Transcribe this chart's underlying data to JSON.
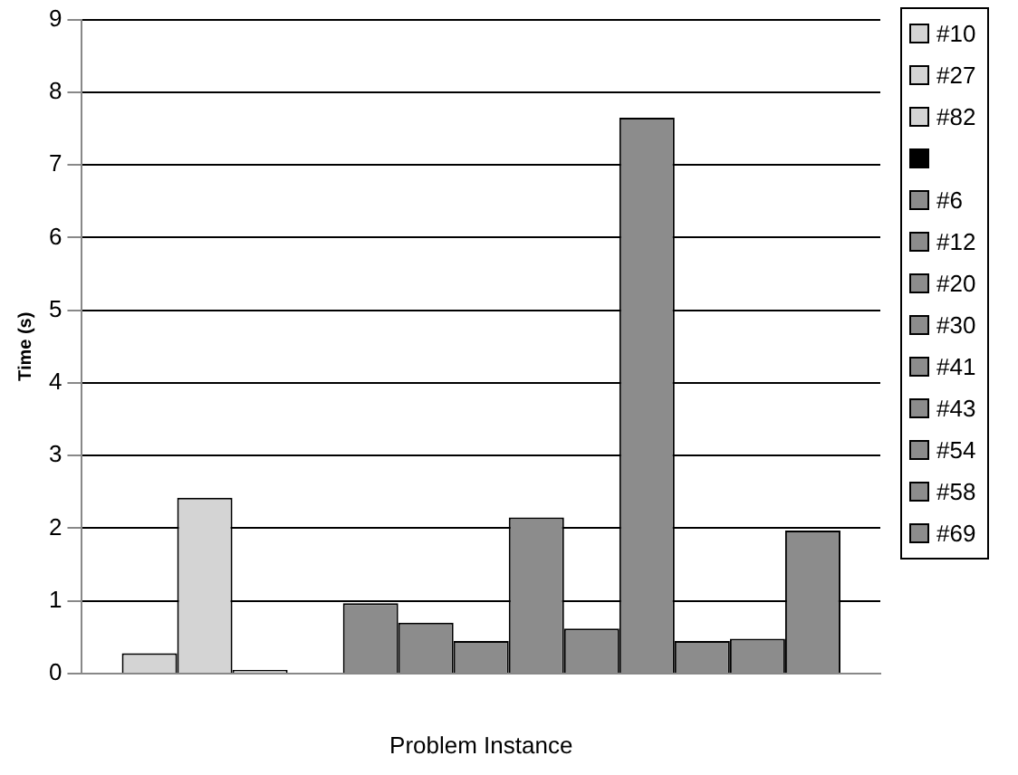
{
  "chart_data": {
    "type": "bar",
    "xlabel": "Problem Instance",
    "ylabel": "Time (s)",
    "categories": [
      null
    ],
    "series": [
      {
        "name": "#10",
        "color": "#d4d4d4",
        "values": [
          0.28
        ]
      },
      {
        "name": "#27",
        "color": "#d4d4d4",
        "values": [
          2.42
        ]
      },
      {
        "name": "#82",
        "color": "#d4d4d4",
        "values": [
          0.05
        ]
      },
      {
        "color": "#000000",
        "values": [
          null
        ]
      },
      {
        "name": "#6",
        "color": "#8c8c8c",
        "values": [
          0.97
        ]
      },
      {
        "name": "#12",
        "color": "#8c8c8c",
        "values": [
          0.7
        ]
      },
      {
        "name": "#20",
        "color": "#8c8c8c",
        "values": [
          0.45
        ]
      },
      {
        "name": "#30",
        "color": "#8c8c8c",
        "values": [
          2.15
        ]
      },
      {
        "name": "#41",
        "color": "#8c8c8c",
        "values": [
          0.62
        ]
      },
      {
        "name": "#43",
        "color": "#8c8c8c",
        "values": [
          7.65
        ]
      },
      {
        "name": "#54",
        "color": "#8c8c8c",
        "values": [
          0.45
        ]
      },
      {
        "name": "#58",
        "color": "#8c8c8c",
        "values": [
          0.48
        ]
      },
      {
        "name": "#69",
        "color": "#8c8c8c",
        "values": [
          1.97
        ]
      }
    ],
    "ylim": [
      0,
      9
    ],
    "yticks": [
      0,
      1,
      2,
      3,
      4,
      5,
      6,
      7,
      8,
      9
    ],
    "grid": "y",
    "legend": "right"
  }
}
